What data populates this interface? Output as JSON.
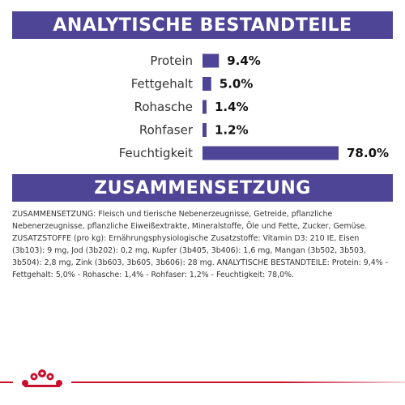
{
  "header": {
    "analysis_title": "ANALYTISCHE BESTANDTEILE"
  },
  "section2": {
    "title": "ZUSAMMENSETZUNG"
  },
  "composition_text": "ZUSAMMENSETZUNG: Fleisch und tierische Nebenerzeugnisse, Getreide, pflanzliche Nebenerzeugnisse, pflanzliche Eiweißextrakte, Mineralstoffe, Öle und Fette, Zucker, Gemüse. ZUSATZSTOFFE (pro kg): Ernährungsphysiologische Zusatzstoffe: Vitamin D3: 210 IE, Eisen (3b103): 9 mg, Jod (3b202): 0,2 mg, Kupfer (3b405, 3b406): 1,6 mg, Mangan (3b502, 3b503, 3b504): 2,8 mg, Zink (3b603, 3b605, 3b606): 28 mg. ANALYTISCHE BESTANDTEILE: Protein: 9,4% - Fettgehalt: 5,0% - Rohasche: 1,4% - Rohfaser: 1,2% - Feuchtigkeit: 78,0%.",
  "colors": {
    "accent": "#4f4596",
    "brand_red": "#c8102e"
  },
  "logo": "royal-canin-crown-logo",
  "chart_data": {
    "type": "bar",
    "orientation": "horizontal",
    "categories": [
      "Protein",
      "Fettgehalt",
      "Rohasche",
      "Rohfaser",
      "Feuchtigkeit"
    ],
    "values": [
      9.4,
      5.0,
      1.4,
      1.2,
      78.0
    ],
    "value_labels": [
      "9.4%",
      "5.0%",
      "1.4%",
      "1.2%",
      "78.0%"
    ],
    "unit": "%",
    "xlim": [
      0,
      78.0
    ],
    "grid": false,
    "legend": "none"
  }
}
